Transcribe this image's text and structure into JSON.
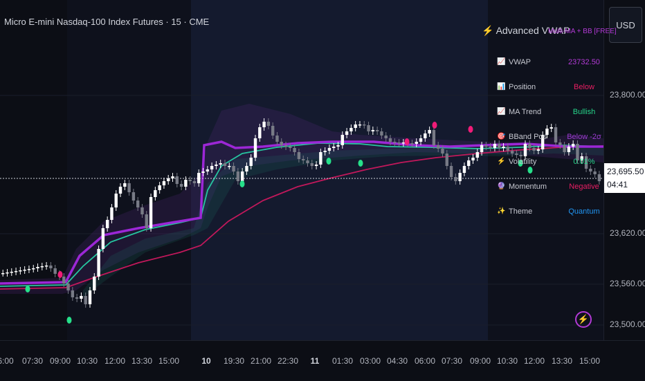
{
  "chart": {
    "title": "Micro E-mini Nasdaq-100 Index Futures · 15 · CME",
    "currency": "USD",
    "current_price": "23,695.50",
    "countdown": "04:41",
    "price_labels": [
      "23,800.00",
      "23,620.00",
      "23,560.00",
      "23,500.00"
    ],
    "time_labels": [
      {
        "text": "6:00",
        "bold": false
      },
      {
        "text": "07:30",
        "bold": false
      },
      {
        "text": "09:00",
        "bold": false
      },
      {
        "text": "10:30",
        "bold": false
      },
      {
        "text": "12:00",
        "bold": false
      },
      {
        "text": "13:30",
        "bold": false
      },
      {
        "text": "15:00",
        "bold": false
      },
      {
        "text": "10",
        "bold": true
      },
      {
        "text": "19:30",
        "bold": false
      },
      {
        "text": "21:00",
        "bold": false
      },
      {
        "text": "22:30",
        "bold": false
      },
      {
        "text": "11",
        "bold": true
      },
      {
        "text": "01:30",
        "bold": false
      },
      {
        "text": "03:00",
        "bold": false
      },
      {
        "text": "04:30",
        "bold": false
      },
      {
        "text": "06:00",
        "bold": false
      },
      {
        "text": "07:30",
        "bold": false
      },
      {
        "text": "09:00",
        "bold": false
      },
      {
        "text": "10:30",
        "bold": false
      },
      {
        "text": "12:00",
        "bold": false
      },
      {
        "text": "13:30",
        "bold": false
      },
      {
        "text": "15:00",
        "bold": false
      }
    ]
  },
  "indicator_panel": {
    "title_icon": "⚡",
    "title": "Advanced VWAP",
    "subtitle": "Multi-MA + BB [FREE]",
    "rows": [
      {
        "icon": "📈",
        "icon_name": "chart-up-icon",
        "label": "VWAP",
        "value": "23732.50",
        "color": "#b33ad6"
      },
      {
        "icon": "📊",
        "icon_name": "bar-chart-icon",
        "label": "Position",
        "value": "Below",
        "color": "#e91e63"
      },
      {
        "icon": "📈",
        "icon_name": "trend-icon",
        "label": "MA Trend",
        "value": "Bullish",
        "color": "#26d68a"
      },
      {
        "icon": "🎯",
        "icon_name": "target-icon",
        "label": "BBand Pos",
        "value": "Below -2σ",
        "color": "#9c3bd1"
      },
      {
        "icon": "⚡",
        "icon_name": "bolt-icon",
        "label": "Volatility",
        "value": "0.01%",
        "color": "#26d68a"
      },
      {
        "icon": "🔮",
        "icon_name": "crystal-ball-icon",
        "label": "Momentum",
        "value": "Negative",
        "color": "#e91e63"
      },
      {
        "icon": "✨",
        "icon_name": "sparkles-icon",
        "label": "Theme",
        "value": "Quantum",
        "color": "#2196f3"
      }
    ]
  },
  "colors": {
    "background": "#0c0e15",
    "up_candle": "#ffffff",
    "down_candle": "#787b86",
    "vwap": "#9c27d6",
    "ma_fast": "#26c6a0",
    "ma_slow": "#c2185b",
    "signal_buy": "#26e08a",
    "signal_sell": "#f01c78"
  }
}
